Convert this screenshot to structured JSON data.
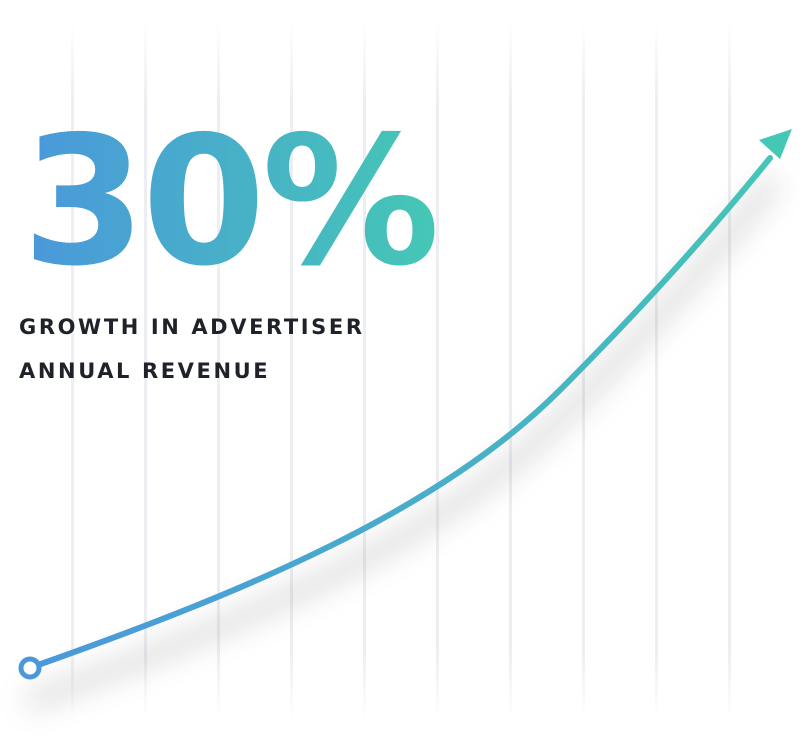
{
  "stat": {
    "value": "30%",
    "caption_line1": "GROWTH IN ADVERTISER",
    "caption_line2": "ANNUAL REVENUE"
  },
  "colors": {
    "gradient_start": "#4a98db",
    "gradient_end": "#45c7b5",
    "caption_text": "#1f2329",
    "grid_line": "#eef0f2"
  },
  "icons": {
    "curve_start": "circle-marker-icon",
    "curve_end": "arrowhead-icon"
  }
}
